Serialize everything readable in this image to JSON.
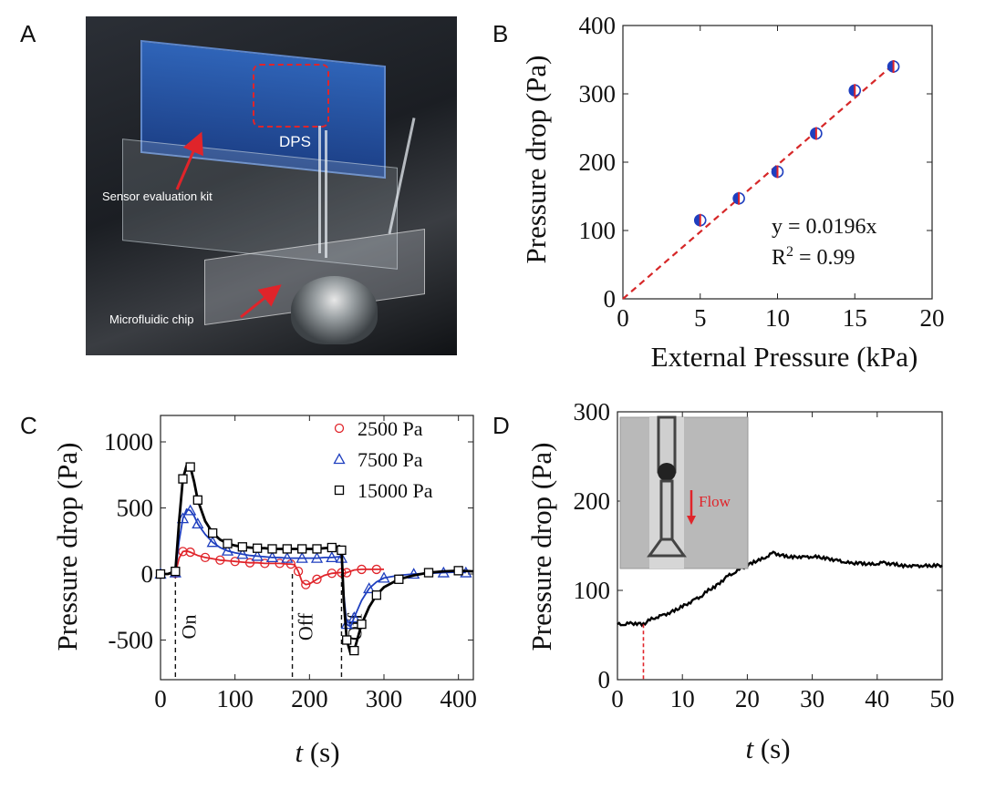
{
  "panels": {
    "A": {
      "letter": "A",
      "photo_labels": {
        "dps": "DPS",
        "sensor_kit": "Sensor evaluation kit",
        "chip": "Microfluidic chip"
      }
    },
    "B": {
      "letter": "B"
    },
    "C": {
      "letter": "C"
    },
    "D": {
      "letter": "D",
      "inset_label": "Flow"
    }
  },
  "chart_data": [
    {
      "panel": "B",
      "type": "scatter",
      "xlabel": "External Pressure (kPa)",
      "ylabel": "Pressure drop (Pa)",
      "xlim": [
        0,
        20
      ],
      "ylim": [
        0,
        400
      ],
      "xticks": [
        0,
        5,
        10,
        15,
        20
      ],
      "yticks": [
        0,
        100,
        200,
        300,
        400
      ],
      "points": [
        {
          "x": 5,
          "y": 115
        },
        {
          "x": 7.5,
          "y": 147
        },
        {
          "x": 10,
          "y": 186
        },
        {
          "x": 12.5,
          "y": 242
        },
        {
          "x": 15,
          "y": 305
        },
        {
          "x": 17.5,
          "y": 340
        }
      ],
      "fit": {
        "slope_per_kPa": 19.6,
        "x_range": [
          0,
          17.5
        ],
        "color": "#d62728"
      },
      "annotations": {
        "equation": "y = 0.0196x",
        "r2_prefix": "R",
        "r2_sup": "2",
        "r2_suffix": " = 0.99"
      },
      "marker_colors": {
        "edge": "#1f3fbf",
        "half": "#e0242a"
      },
      "grid": false
    },
    {
      "panel": "C",
      "type": "line",
      "xlabel_italic": "t",
      "xlabel_rest": " (s)",
      "ylabel": "Pressure drop (Pa)",
      "xlim": [
        0,
        420
      ],
      "ylim": [
        -800,
        1200
      ],
      "xticks": [
        0,
        100,
        200,
        300,
        400
      ],
      "yticks": [
        -500,
        0,
        500,
        1000
      ],
      "ytick_labels": [
        "-500",
        "0",
        "500",
        "1000"
      ],
      "legend_position": "top-right",
      "series": [
        {
          "name": "2500 Pa",
          "color": "#e0242a",
          "marker": "circle",
          "x": [
            0,
            10,
            20,
            25,
            30,
            35,
            40,
            50,
            60,
            70,
            80,
            90,
            100,
            110,
            120,
            130,
            140,
            150,
            160,
            170,
            175,
            180,
            185,
            190,
            195,
            200,
            210,
            220,
            230,
            240,
            243,
            246,
            250,
            260,
            270,
            280,
            290,
            300
          ],
          "y": [
            0,
            0,
            5,
            120,
            170,
            175,
            165,
            140,
            125,
            115,
            105,
            100,
            95,
            90,
            85,
            85,
            80,
            80,
            80,
            75,
            75,
            70,
            20,
            -60,
            -80,
            -75,
            -40,
            -10,
            5,
            10,
            10,
            5,
            10,
            30,
            35,
            35,
            35,
            35
          ]
        },
        {
          "name": "7500 Pa",
          "color": "#1f3fbf",
          "marker": "triangle",
          "x": [
            0,
            10,
            20,
            25,
            30,
            35,
            40,
            45,
            50,
            60,
            70,
            80,
            90,
            100,
            110,
            120,
            130,
            140,
            150,
            160,
            170,
            180,
            190,
            200,
            210,
            220,
            230,
            240,
            243,
            246,
            250,
            255,
            260,
            270,
            280,
            290,
            300,
            320,
            340,
            360,
            380,
            400,
            410
          ],
          "y": [
            0,
            0,
            10,
            250,
            420,
            490,
            480,
            440,
            380,
            300,
            240,
            200,
            175,
            160,
            150,
            140,
            135,
            130,
            125,
            125,
            120,
            120,
            120,
            120,
            120,
            125,
            125,
            130,
            120,
            -150,
            -380,
            -400,
            -330,
            -200,
            -110,
            -60,
            -30,
            -10,
            0,
            5,
            10,
            15,
            10
          ]
        },
        {
          "name": "15000 Pa",
          "color": "#000000",
          "marker": "square",
          "x": [
            0,
            10,
            20,
            25,
            30,
            35,
            40,
            45,
            50,
            60,
            70,
            80,
            90,
            100,
            110,
            120,
            130,
            140,
            150,
            160,
            170,
            180,
            190,
            200,
            210,
            220,
            230,
            240,
            243,
            246,
            250,
            255,
            260,
            265,
            270,
            280,
            290,
            300,
            320,
            340,
            360,
            380,
            400,
            420
          ],
          "y": [
            0,
            0,
            20,
            400,
            720,
            820,
            810,
            700,
            560,
            400,
            310,
            260,
            230,
            215,
            205,
            200,
            195,
            195,
            190,
            190,
            190,
            190,
            190,
            190,
            190,
            195,
            200,
            210,
            180,
            -200,
            -500,
            -600,
            -580,
            -480,
            -380,
            -250,
            -160,
            -100,
            -40,
            -10,
            10,
            20,
            25,
            20
          ]
        }
      ],
      "event_lines": [
        {
          "x": 20,
          "label": "On"
        },
        {
          "x": 177,
          "label": "Off"
        },
        {
          "x": 243,
          "label": "Off"
        }
      ],
      "grid": false
    },
    {
      "panel": "D",
      "type": "line",
      "xlabel_italic": "t",
      "xlabel_rest": " (s)",
      "ylabel": "Pressure drop (Pa)",
      "xlim": [
        0,
        50
      ],
      "ylim": [
        0,
        300
      ],
      "xticks": [
        0,
        10,
        20,
        30,
        40,
        50
      ],
      "yticks": [
        0,
        100,
        200,
        300
      ],
      "series": [
        {
          "color": "#000000",
          "x": [
            0,
            1,
            2,
            3,
            4,
            5,
            6,
            7,
            8,
            9,
            10,
            11,
            12,
            13,
            14,
            15,
            16,
            17,
            18,
            19,
            20,
            21,
            22,
            23,
            24,
            25,
            26,
            27,
            28,
            29,
            30,
            31,
            32,
            33,
            34,
            35,
            36,
            37,
            38,
            39,
            40,
            41,
            42,
            43,
            44,
            45,
            46,
            47,
            48,
            49,
            50
          ],
          "y": [
            62,
            62,
            63,
            63,
            62,
            67,
            70,
            72,
            75,
            78,
            82,
            86,
            90,
            94,
            100,
            104,
            110,
            116,
            120,
            124,
            128,
            132,
            134,
            138,
            142,
            140,
            138,
            137,
            138,
            137,
            138,
            137,
            136,
            135,
            133,
            132,
            130,
            131,
            130,
            129,
            130,
            131,
            130,
            129,
            127,
            128,
            127,
            128,
            127,
            128,
            128
          ]
        }
      ],
      "event_line": {
        "x": 4,
        "color": "#e0242a"
      },
      "grid": false
    }
  ]
}
